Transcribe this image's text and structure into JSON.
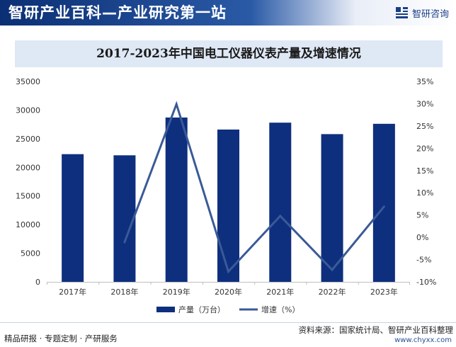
{
  "header": {
    "title": "智研产业百科—产业研究第一站",
    "brand": "智研咨询"
  },
  "footer": {
    "left": "精品研报 · 专题定制 · 产研服务",
    "source": "资料来源：国家统计局、智研产业百科整理",
    "url": "www.chyxx.com"
  },
  "colors": {
    "bar": "#0e2f7e",
    "line": "#3a5a97",
    "header_dark": "#0b2f74"
  },
  "chart_data": {
    "type": "bar",
    "title": "2017-2023年中国电工仪器仪表产量及增速情况",
    "categories": [
      "2017年",
      "2018年",
      "2019年",
      "2020年",
      "2021年",
      "2022年",
      "2023年"
    ],
    "series": [
      {
        "name": "产量（万台）",
        "type": "bar",
        "axis": "left",
        "values": [
          22300,
          22100,
          28700,
          26600,
          27800,
          25800,
          27600
        ]
      },
      {
        "name": "增速（%）",
        "type": "line",
        "axis": "right",
        "values": [
          null,
          -1.1,
          29.9,
          -7.7,
          4.8,
          -7.3,
          6.9
        ]
      }
    ],
    "y_left": {
      "min": 0,
      "max": 35000,
      "ticks": [
        "0",
        "5000",
        "10000",
        "15000",
        "20000",
        "25000",
        "30000",
        "35000"
      ]
    },
    "y_right": {
      "min": -10,
      "max": 35,
      "ticks": [
        "-10%",
        "-5%",
        "0%",
        "5%",
        "10%",
        "15%",
        "20%",
        "25%",
        "30%",
        "35%"
      ]
    },
    "legend_position": "bottom",
    "grid": false
  }
}
